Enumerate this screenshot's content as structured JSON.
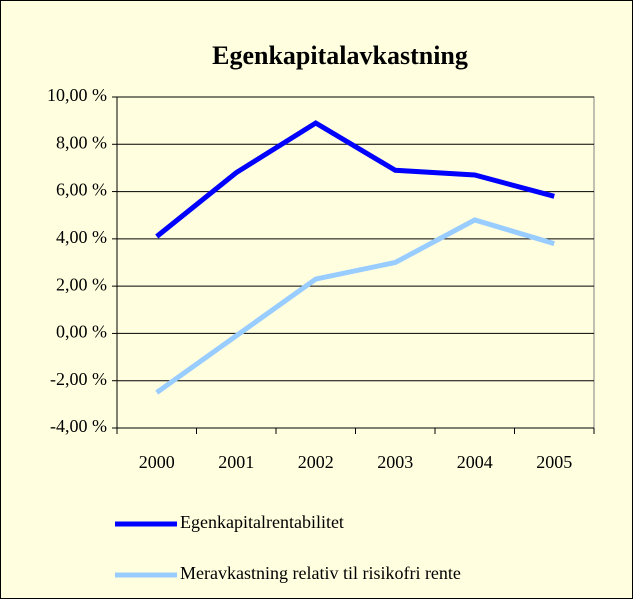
{
  "chart_data": {
    "type": "line",
    "title": "Egenkapitalavkastning",
    "categories": [
      "2000",
      "2001",
      "2002",
      "2003",
      "2004",
      "2005"
    ],
    "series": [
      {
        "name": "Egenkapitalrentabilitet",
        "color": "#0000ff",
        "values": [
          4.1,
          6.8,
          8.9,
          6.9,
          6.7,
          5.8
        ]
      },
      {
        "name": "Meravkastning relativ til risikofri rente",
        "color": "#99ccff",
        "values": [
          -2.5,
          -0.1,
          2.3,
          3.0,
          4.8,
          3.8
        ]
      }
    ],
    "ylim": [
      -4,
      10
    ],
    "yticks": [
      {
        "value": -4,
        "label": "-4,00 %"
      },
      {
        "value": -2,
        "label": "-2,00 %"
      },
      {
        "value": 0,
        "label": "0,00 %"
      },
      {
        "value": 2,
        "label": "2,00 %"
      },
      {
        "value": 4,
        "label": "4,00 %"
      },
      {
        "value": 6,
        "label": "6,00 %"
      },
      {
        "value": 8,
        "label": "8,00 %"
      },
      {
        "value": 10,
        "label": "10,00 %"
      }
    ],
    "grid": true,
    "legend": "bottom"
  }
}
